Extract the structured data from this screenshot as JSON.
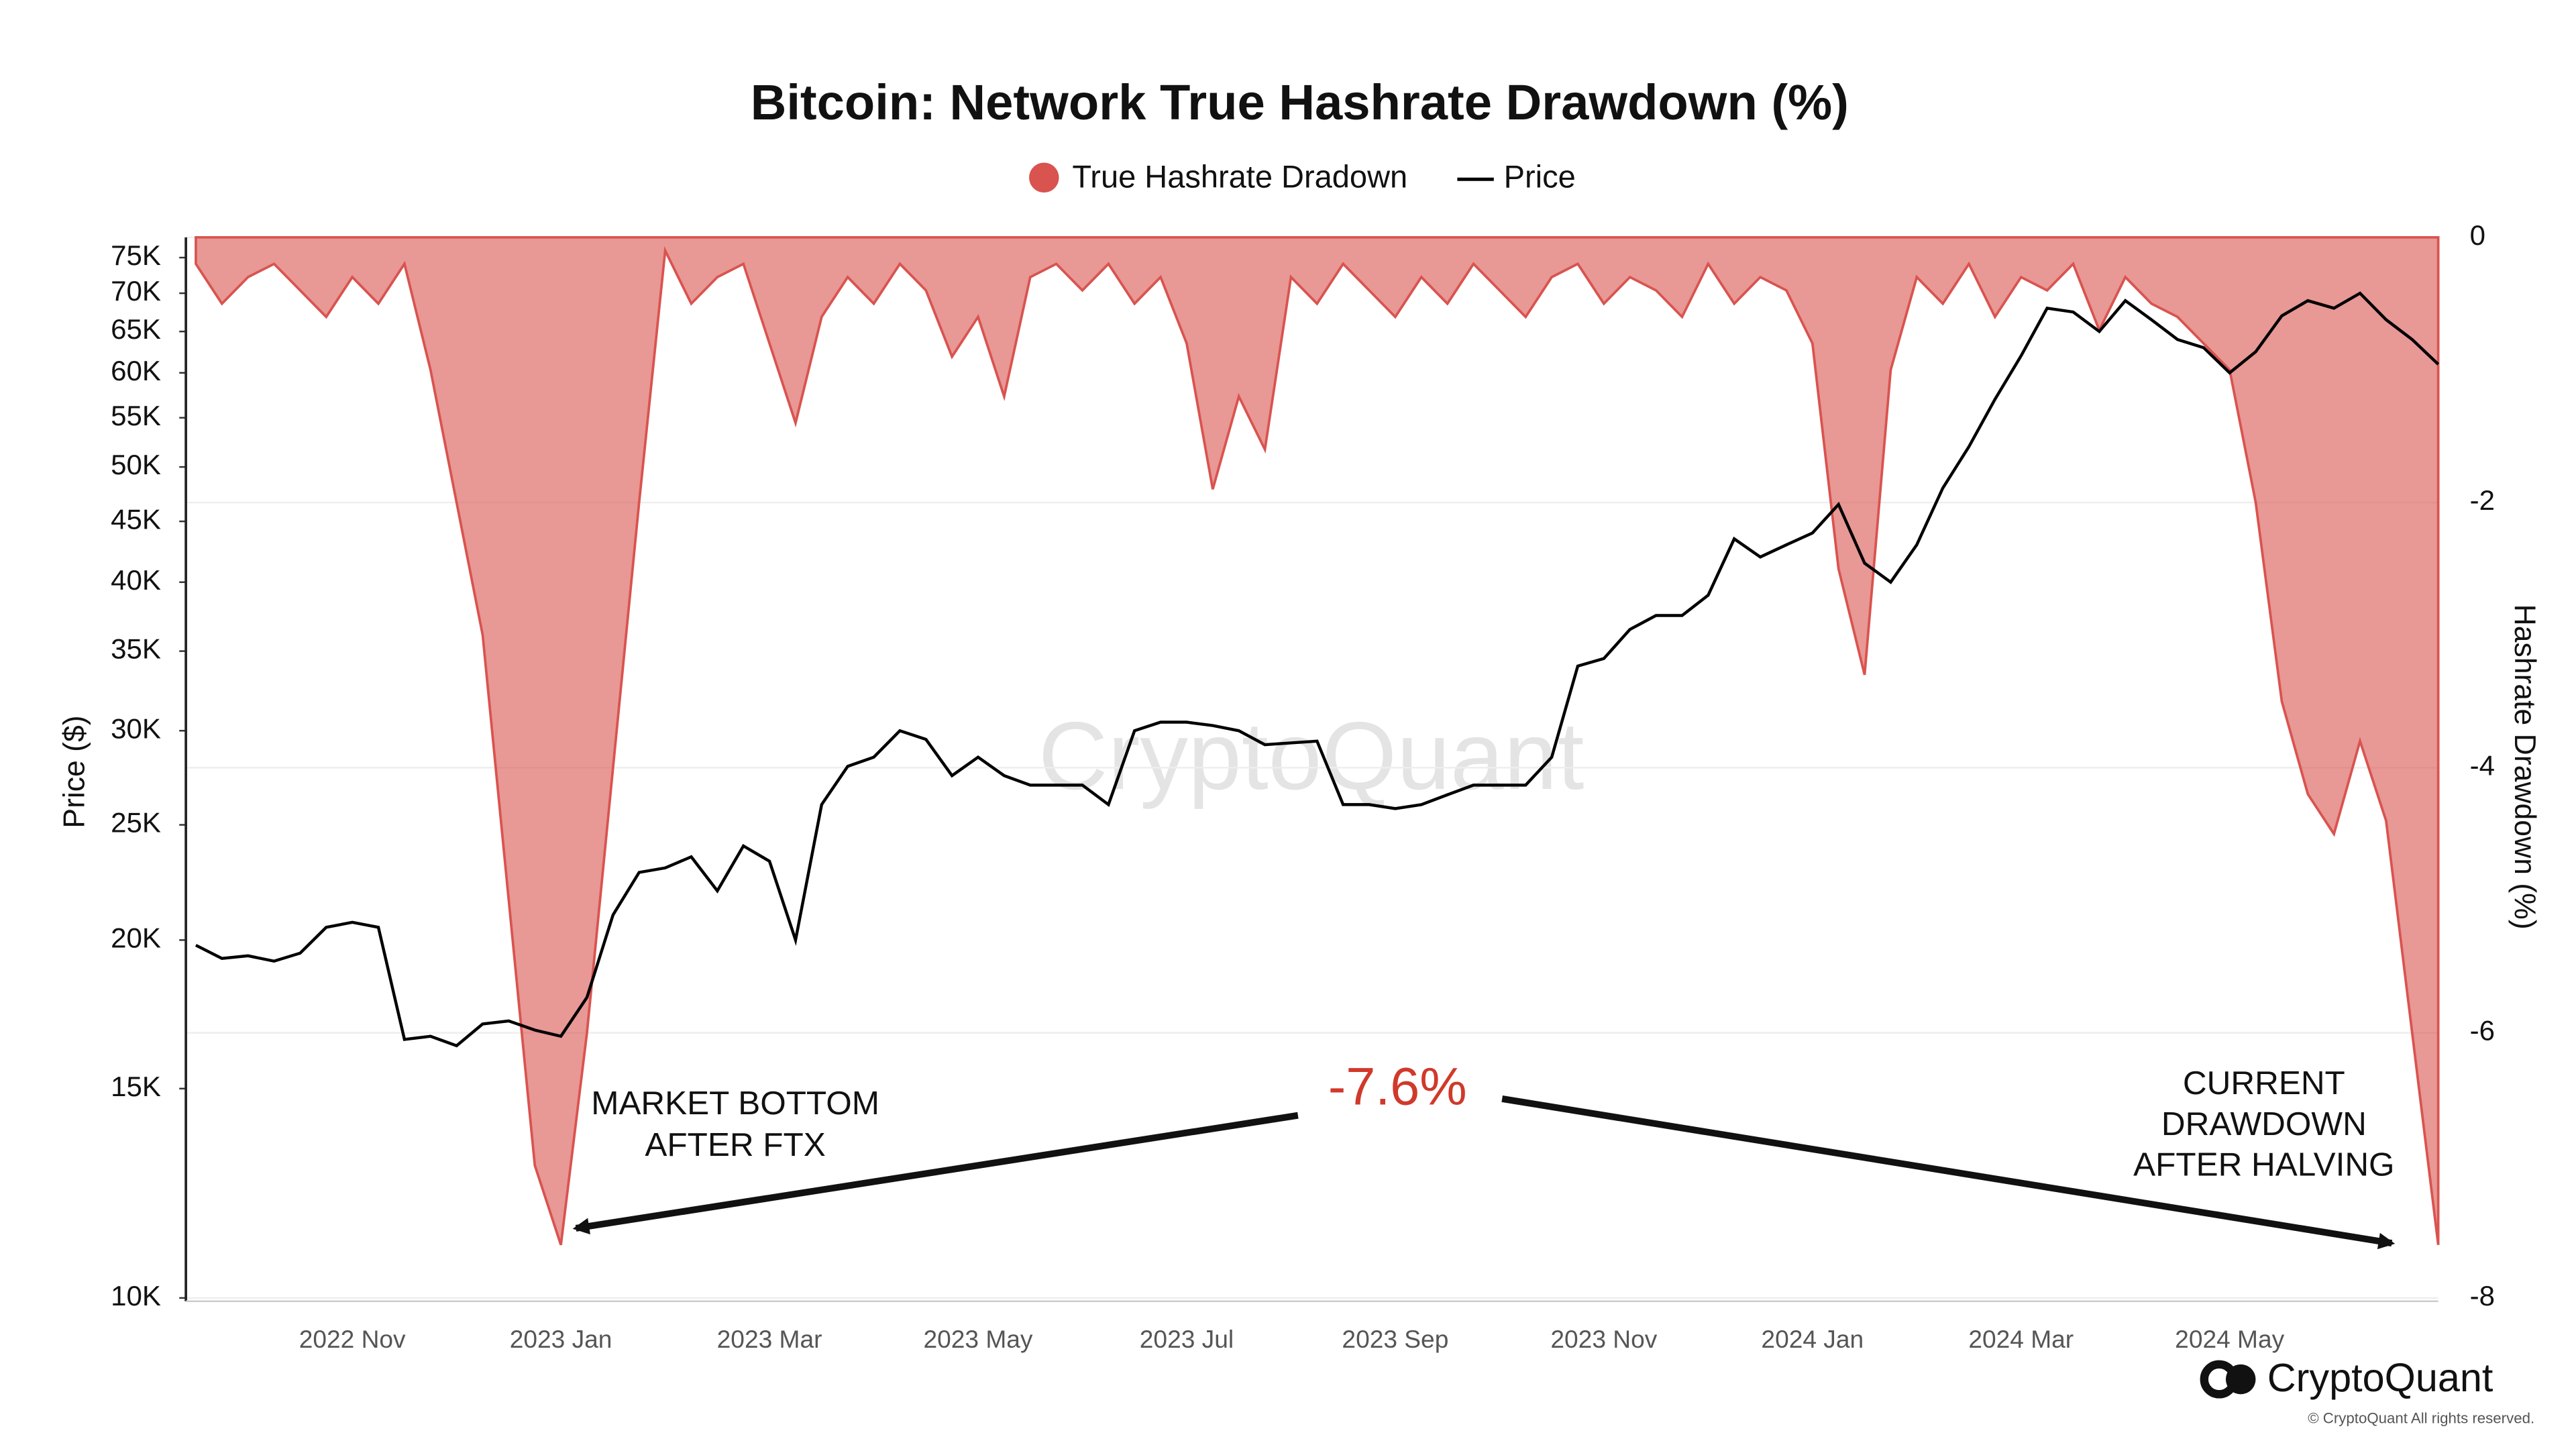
{
  "chart_data": {
    "type": "line",
    "title": "Bitcoin: Network True Hashrate Drawdown (%)",
    "categories": [
      null,
      null,
      null,
      null,
      null,
      null,
      "2022 Nov",
      null,
      null,
      null,
      null,
      null,
      null,
      null,
      "2023 Jan",
      null,
      null,
      null,
      null,
      null,
      null,
      null,
      "2023 Mar",
      null,
      null,
      null,
      null,
      null,
      null,
      null,
      "2023 May",
      null,
      null,
      null,
      null,
      null,
      null,
      null,
      "2023 Jul",
      null,
      null,
      null,
      null,
      null,
      null,
      null,
      "2023 Sep",
      null,
      null,
      null,
      null,
      null,
      null,
      null,
      "2023 Nov",
      null,
      null,
      null,
      null,
      null,
      null,
      null,
      "2024 Jan",
      null,
      null,
      null,
      null,
      null,
      null,
      null,
      "2024 Mar",
      null,
      null,
      null,
      null,
      null,
      null,
      null,
      "2024 May",
      null,
      null,
      null,
      null,
      null,
      null,
      null,
      null
    ],
    "series": [
      {
        "name": "True Hashrate Dradown",
        "chart_type": "area",
        "axis": "y2",
        "color": "#d9534f",
        "values": [
          -0.2,
          -0.5,
          -0.3,
          -0.2,
          -0.4,
          -0.6,
          -0.3,
          -0.5,
          -0.2,
          -1.0,
          -2.0,
          -3.0,
          -5.0,
          -7.0,
          -7.6,
          -6.0,
          -4.0,
          -2.0,
          -0.1,
          -0.5,
          -0.3,
          -0.2,
          -0.8,
          -1.4,
          -0.6,
          -0.3,
          -0.5,
          -0.2,
          -0.4,
          -0.9,
          -0.6,
          -1.2,
          -0.3,
          -0.2,
          -0.4,
          -0.2,
          -0.5,
          -0.3,
          -0.8,
          -1.9,
          -1.2,
          -1.6,
          -0.3,
          -0.5,
          -0.2,
          -0.4,
          -0.6,
          -0.3,
          -0.5,
          -0.2,
          -0.4,
          -0.6,
          -0.3,
          -0.2,
          -0.5,
          -0.3,
          -0.4,
          -0.6,
          -0.2,
          -0.5,
          -0.3,
          -0.4,
          -0.8,
          -2.5,
          -3.3,
          -1.0,
          -0.3,
          -0.5,
          -0.2,
          -0.6,
          -0.3,
          -0.4,
          -0.2,
          -0.7,
          -0.3,
          -0.5,
          -0.6,
          -0.8,
          -1.0,
          -2.0,
          -3.5,
          -4.2,
          -4.5,
          -3.8,
          -4.4,
          -6.0,
          -7.6
        ]
      },
      {
        "name": "Price",
        "chart_type": "line",
        "axis": "y",
        "color": "#000000",
        "values": [
          19800,
          19300,
          19400,
          19200,
          19500,
          20500,
          20700,
          20500,
          16500,
          16600,
          16300,
          17000,
          17100,
          16800,
          16600,
          17900,
          21000,
          22800,
          23000,
          23500,
          22000,
          24000,
          23300,
          20000,
          26000,
          28000,
          28500,
          30000,
          29500,
          27500,
          28500,
          27500,
          27000,
          27000,
          27000,
          26000,
          30000,
          30500,
          30500,
          30300,
          30000,
          29200,
          29300,
          29400,
          26000,
          26000,
          25800,
          26000,
          26500,
          27000,
          27000,
          27000,
          28500,
          34000,
          34500,
          36500,
          37500,
          37500,
          39000,
          43500,
          42000,
          43000,
          44000,
          46500,
          41500,
          40000,
          43000,
          48000,
          52000,
          57000,
          62000,
          68000,
          67500,
          65000,
          69000,
          66500,
          64000,
          63000,
          60000,
          62500,
          67000,
          69000,
          68000,
          70000,
          66500,
          64000,
          61000
        ]
      }
    ],
    "log_y": true,
    "ylabel": "Price ($)",
    "ylim": [
      10000,
      78000
    ],
    "yticks": [
      {
        "value": 10000,
        "label": "10K"
      },
      {
        "value": 15000,
        "label": "15K"
      },
      {
        "value": 20000,
        "label": "20K"
      },
      {
        "value": 25000,
        "label": "25K"
      },
      {
        "value": 30000,
        "label": "30K"
      },
      {
        "value": 35000,
        "label": "35K"
      },
      {
        "value": 40000,
        "label": "40K"
      },
      {
        "value": 45000,
        "label": "45K"
      },
      {
        "value": 50000,
        "label": "50K"
      },
      {
        "value": 55000,
        "label": "55K"
      },
      {
        "value": 60000,
        "label": "60K"
      },
      {
        "value": 65000,
        "label": "65K"
      },
      {
        "value": 70000,
        "label": "70K"
      },
      {
        "value": 75000,
        "label": "75K"
      }
    ],
    "y2label": "Hashrate Drawdown (%)",
    "y2lim": [
      -8,
      0
    ],
    "y2ticks": [
      0,
      -2,
      -4,
      -6,
      -8
    ],
    "grid": true,
    "legend": "top",
    "annotations": [
      {
        "lines": [
          "MARKET BOTTOM",
          "AFTER FTX"
        ]
      },
      {
        "lines": [
          "-7.6%"
        ],
        "color": "#d0392b"
      },
      {
        "lines": [
          "CURRENT",
          "DRAWDOWN",
          "AFTER HALVING"
        ]
      }
    ],
    "watermark": "CryptoQuant"
  },
  "footer": {
    "brand": "CryptoQuant",
    "copyright": "© CryptoQuant All rights reserved."
  }
}
